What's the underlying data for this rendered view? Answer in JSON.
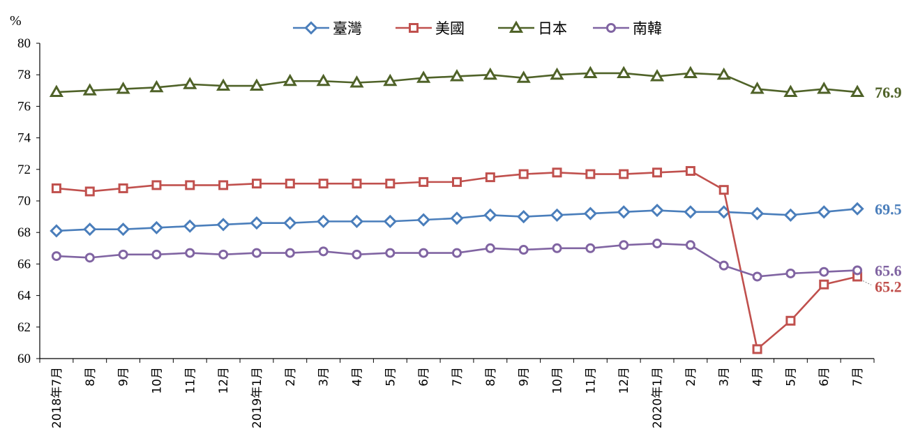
{
  "chart_data": {
    "type": "line",
    "unit_label": "%",
    "ylim": [
      60,
      80
    ],
    "yticks": [
      60,
      62,
      64,
      66,
      68,
      70,
      72,
      74,
      76,
      78,
      80
    ],
    "categories": [
      "2018年7月",
      "8月",
      "9月",
      "10月",
      "11月",
      "12月",
      "2019年1月",
      "2月",
      "3月",
      "4月",
      "5月",
      "6月",
      "7月",
      "8月",
      "9月",
      "10月",
      "11月",
      "12月",
      "2020年1月",
      "2月",
      "3月",
      "4月",
      "5月",
      "6月",
      "7月"
    ],
    "legend_position": "top",
    "grid": false,
    "series": [
      {
        "name": "臺灣",
        "color": "#4a7ebb",
        "marker": "diamond",
        "values": [
          68.1,
          68.2,
          68.2,
          68.3,
          68.4,
          68.5,
          68.6,
          68.6,
          68.7,
          68.7,
          68.7,
          68.8,
          68.9,
          69.1,
          69.0,
          69.1,
          69.2,
          69.3,
          69.4,
          69.3,
          69.3,
          69.2,
          69.1,
          69.3,
          69.5
        ],
        "end_label": "69.5"
      },
      {
        "name": "美國",
        "color": "#c0504d",
        "marker": "square",
        "values": [
          70.8,
          70.6,
          70.8,
          71.0,
          71.0,
          71.0,
          71.1,
          71.1,
          71.1,
          71.1,
          71.1,
          71.2,
          71.2,
          71.5,
          71.7,
          71.8,
          71.7,
          71.7,
          71.8,
          71.9,
          70.7,
          60.6,
          62.4,
          64.7,
          65.2
        ],
        "end_label": "65.2"
      },
      {
        "name": "日本",
        "color": "#4f6228",
        "marker": "triangle",
        "values": [
          76.9,
          77.0,
          77.1,
          77.2,
          77.4,
          77.3,
          77.3,
          77.6,
          77.6,
          77.5,
          77.6,
          77.8,
          77.9,
          78.0,
          77.8,
          78.0,
          78.1,
          78.1,
          77.9,
          78.1,
          78.0,
          77.1,
          76.9,
          77.1,
          76.9
        ],
        "end_label": "76.9"
      },
      {
        "name": "南韓",
        "color": "#8064a2",
        "marker": "circle",
        "values": [
          66.5,
          66.4,
          66.6,
          66.6,
          66.7,
          66.6,
          66.7,
          66.7,
          66.8,
          66.6,
          66.7,
          66.7,
          66.7,
          67.0,
          66.9,
          67.0,
          67.0,
          67.2,
          67.3,
          67.2,
          65.9,
          65.2,
          65.4,
          65.5,
          65.6
        ],
        "end_label": "65.6"
      }
    ]
  }
}
